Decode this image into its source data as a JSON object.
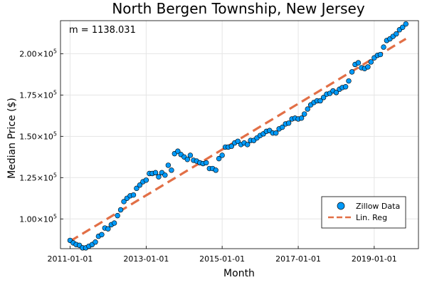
{
  "chart_data": {
    "type": "scatter",
    "title": "North Bergen Township, New Jersey",
    "xlabel": "Month",
    "ylabel": "Median Price ($)",
    "annotation": "m = 1138.031",
    "xlim": [
      "2010-10-01",
      "2020-03-01"
    ],
    "ylim": [
      82000,
      220000
    ],
    "x_ticks": [
      "2011-01-01",
      "2013-01-01",
      "2015-01-01",
      "2017-01-01",
      "2019-01-01"
    ],
    "y_ticks": [
      {
        "value": 100000,
        "mantissa": "1.00",
        "base": "×10",
        "exp": "5"
      },
      {
        "value": 125000,
        "mantissa": "1.25",
        "base": "×10",
        "exp": "5"
      },
      {
        "value": 150000,
        "mantissa": "1.50",
        "base": "×10",
        "exp": "5"
      },
      {
        "value": 175000,
        "mantissa": "1.75",
        "base": "×10",
        "exp": "5"
      },
      {
        "value": 200000,
        "mantissa": "2.00",
        "base": "×10",
        "exp": "5"
      }
    ],
    "grid": true,
    "legend_position": "bottom-right",
    "series": [
      {
        "name": "Zillow Data",
        "kind": "scatter",
        "color": "#009af9",
        "x": [
          "2011-01-01",
          "2011-02-01",
          "2011-03-01",
          "2011-04-01",
          "2011-05-01",
          "2011-06-01",
          "2011-07-01",
          "2011-08-01",
          "2011-09-01",
          "2011-10-01",
          "2011-11-01",
          "2011-12-01",
          "2012-01-01",
          "2012-02-01",
          "2012-03-01",
          "2012-04-01",
          "2012-05-01",
          "2012-06-01",
          "2012-07-01",
          "2012-08-01",
          "2012-09-01",
          "2012-10-01",
          "2012-11-01",
          "2012-12-01",
          "2013-01-01",
          "2013-02-01",
          "2013-03-01",
          "2013-04-01",
          "2013-05-01",
          "2013-06-01",
          "2013-07-01",
          "2013-08-01",
          "2013-09-01",
          "2013-10-01",
          "2013-11-01",
          "2013-12-01",
          "2014-01-01",
          "2014-02-01",
          "2014-03-01",
          "2014-04-01",
          "2014-05-01",
          "2014-06-01",
          "2014-07-01",
          "2014-08-01",
          "2014-09-01",
          "2014-10-01",
          "2014-11-01",
          "2014-12-01",
          "2015-01-01",
          "2015-02-01",
          "2015-03-01",
          "2015-04-01",
          "2015-05-01",
          "2015-06-01",
          "2015-07-01",
          "2015-08-01",
          "2015-09-01",
          "2015-10-01",
          "2015-11-01",
          "2015-12-01",
          "2016-01-01",
          "2016-02-01",
          "2016-03-01",
          "2016-04-01",
          "2016-05-01",
          "2016-06-01",
          "2016-07-01",
          "2016-08-01",
          "2016-09-01",
          "2016-10-01",
          "2016-11-01",
          "2016-12-01",
          "2017-01-01",
          "2017-02-01",
          "2017-03-01",
          "2017-04-01",
          "2017-05-01",
          "2017-06-01",
          "2017-07-01",
          "2017-08-01",
          "2017-09-01",
          "2017-10-01",
          "2017-11-01",
          "2017-12-01",
          "2018-01-01",
          "2018-02-01",
          "2018-03-01",
          "2018-04-01",
          "2018-05-01",
          "2018-06-01",
          "2018-07-01",
          "2018-08-01",
          "2018-09-01",
          "2018-10-01",
          "2018-11-01",
          "2018-12-01",
          "2019-01-01",
          "2019-02-01",
          "2019-03-01",
          "2019-04-01",
          "2019-05-01",
          "2019-06-01",
          "2019-07-01",
          "2019-08-01",
          "2019-09-01",
          "2019-10-01",
          "2019-11-01"
        ],
        "y": [
          87000,
          85500,
          84500,
          84000,
          82500,
          82500,
          83500,
          84500,
          86000,
          89500,
          90500,
          94500,
          94000,
          96500,
          97500,
          102000,
          105500,
          110500,
          112500,
          114000,
          114500,
          118500,
          120500,
          122500,
          123500,
          127500,
          127500,
          128000,
          125500,
          128000,
          126500,
          132500,
          129500,
          139500,
          141000,
          139000,
          137500,
          136000,
          138500,
          135500,
          135000,
          134000,
          133500,
          134000,
          130500,
          130500,
          129500,
          136500,
          138500,
          143500,
          143500,
          144000,
          146000,
          147000,
          145000,
          146000,
          145000,
          147500,
          147500,
          149000,
          150500,
          151500,
          153000,
          153500,
          152000,
          152000,
          154500,
          155500,
          157500,
          158000,
          160500,
          161000,
          160500,
          161000,
          163500,
          166500,
          169000,
          170500,
          171500,
          171500,
          173500,
          175500,
          176000,
          177500,
          176500,
          178500,
          179500,
          180000,
          183500,
          189000,
          193500,
          194500,
          191500,
          191000,
          192000,
          195000,
          197500,
          199000,
          199500,
          204000,
          208000,
          209000,
          210500,
          212000,
          214500,
          216000,
          218000
        ]
      },
      {
        "name": "Lin. Reg",
        "kind": "line",
        "color": "#e26f46",
        "x": [
          "2011-01-01",
          "2019-11-01"
        ],
        "y": [
          86500,
          209000
        ]
      }
    ]
  }
}
